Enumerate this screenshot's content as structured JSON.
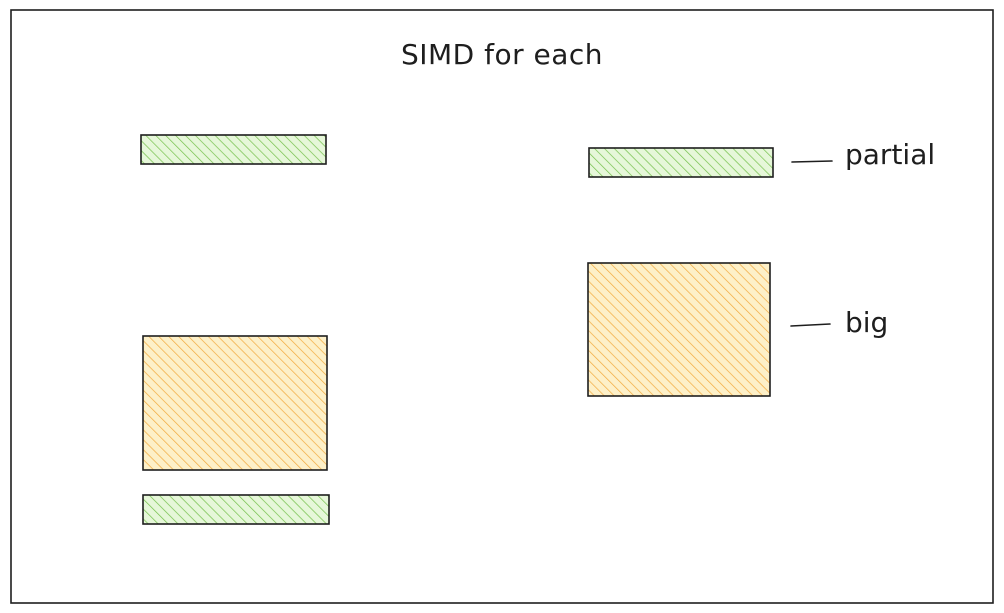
{
  "diagram": {
    "title": "SIMD for each",
    "labels": {
      "partial": "partial",
      "big": "big"
    },
    "colors": {
      "stroke": "#1e1e1e",
      "partial_fill": "#b2f2bb",
      "partial_hatch": "#40c057",
      "big_fill": "#ffec99",
      "big_hatch": "#f59f00",
      "background": "#ffffff"
    }
  }
}
